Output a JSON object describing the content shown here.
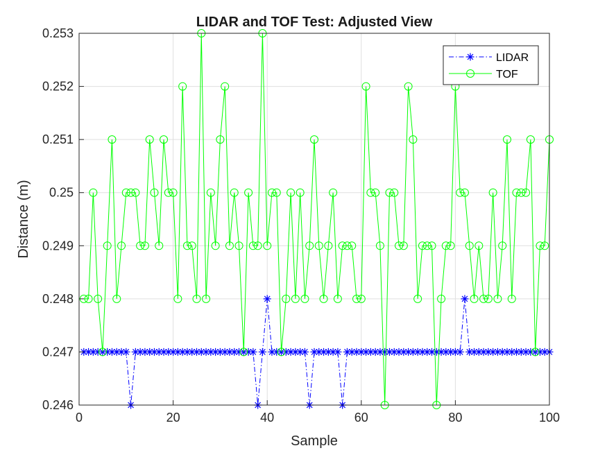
{
  "chart_data": {
    "type": "line",
    "title": "LIDAR and TOF Test: Adjusted View",
    "xlabel": "Sample",
    "ylabel": "Distance (m)",
    "xlim": [
      0,
      100
    ],
    "ylim": [
      0.246,
      0.253
    ],
    "xticks": [
      0,
      20,
      40,
      60,
      80,
      100
    ],
    "xtick_labels": [
      "0",
      "20",
      "40",
      "60",
      "80",
      "100"
    ],
    "yticks": [
      0.246,
      0.247,
      0.248,
      0.249,
      0.25,
      0.251,
      0.252,
      0.253
    ],
    "ytick_labels": [
      "0.246",
      "0.247",
      "0.248",
      "0.249",
      "0.25",
      "0.251",
      "0.252",
      "0.253"
    ],
    "grid": true,
    "legend_position": "top-right",
    "x": [
      1,
      2,
      3,
      4,
      5,
      6,
      7,
      8,
      9,
      10,
      11,
      12,
      13,
      14,
      15,
      16,
      17,
      18,
      19,
      20,
      21,
      22,
      23,
      24,
      25,
      26,
      27,
      28,
      29,
      30,
      31,
      32,
      33,
      34,
      35,
      36,
      37,
      38,
      39,
      40,
      41,
      42,
      43,
      44,
      45,
      46,
      47,
      48,
      49,
      50,
      51,
      52,
      53,
      54,
      55,
      56,
      57,
      58,
      59,
      60,
      61,
      62,
      63,
      64,
      65,
      66,
      67,
      68,
      69,
      70,
      71,
      72,
      73,
      74,
      75,
      76,
      77,
      78,
      79,
      80,
      81,
      82,
      83,
      84,
      85,
      86,
      87,
      88,
      89,
      90,
      91,
      92,
      93,
      94,
      95,
      96,
      97,
      98,
      99,
      100
    ],
    "series": [
      {
        "name": "LIDAR",
        "color": "#0000ff",
        "line_style": "dash-dot",
        "marker": "asterisk",
        "values": [
          0.247,
          0.247,
          0.247,
          0.247,
          0.247,
          0.247,
          0.247,
          0.247,
          0.247,
          0.247,
          0.246,
          0.247,
          0.247,
          0.247,
          0.247,
          0.247,
          0.247,
          0.247,
          0.247,
          0.247,
          0.247,
          0.247,
          0.247,
          0.247,
          0.247,
          0.247,
          0.247,
          0.247,
          0.247,
          0.247,
          0.247,
          0.247,
          0.247,
          0.247,
          0.247,
          0.247,
          0.247,
          0.246,
          0.247,
          0.248,
          0.247,
          0.247,
          0.247,
          0.247,
          0.247,
          0.247,
          0.247,
          0.247,
          0.246,
          0.247,
          0.247,
          0.247,
          0.247,
          0.247,
          0.247,
          0.246,
          0.247,
          0.247,
          0.247,
          0.247,
          0.247,
          0.247,
          0.247,
          0.247,
          0.247,
          0.247,
          0.247,
          0.247,
          0.247,
          0.247,
          0.247,
          0.247,
          0.247,
          0.247,
          0.247,
          0.247,
          0.247,
          0.247,
          0.247,
          0.247,
          0.247,
          0.248,
          0.247,
          0.247,
          0.247,
          0.247,
          0.247,
          0.247,
          0.247,
          0.247,
          0.247,
          0.247,
          0.247,
          0.247,
          0.247,
          0.247,
          0.247,
          0.247,
          0.247,
          0.247
        ]
      },
      {
        "name": "TOF",
        "color": "#00ff00",
        "line_style": "solid",
        "marker": "circle",
        "values": [
          0.248,
          0.248,
          0.25,
          0.248,
          0.247,
          0.249,
          0.251,
          0.248,
          0.249,
          0.25,
          0.25,
          0.25,
          0.249,
          0.249,
          0.251,
          0.25,
          0.249,
          0.251,
          0.25,
          0.25,
          0.248,
          0.252,
          0.249,
          0.249,
          0.248,
          0.253,
          0.248,
          0.25,
          0.249,
          0.251,
          0.252,
          0.249,
          0.25,
          0.249,
          0.247,
          0.25,
          0.249,
          0.249,
          0.253,
          0.249,
          0.25,
          0.25,
          0.247,
          0.248,
          0.25,
          0.248,
          0.25,
          0.248,
          0.249,
          0.251,
          0.249,
          0.248,
          0.249,
          0.25,
          0.248,
          0.249,
          0.249,
          0.249,
          0.248,
          0.248,
          0.252,
          0.25,
          0.25,
          0.249,
          0.246,
          0.25,
          0.25,
          0.249,
          0.249,
          0.252,
          0.251,
          0.248,
          0.249,
          0.249,
          0.249,
          0.246,
          0.248,
          0.249,
          0.249,
          0.252,
          0.25,
          0.25,
          0.249,
          0.248,
          0.249,
          0.248,
          0.248,
          0.25,
          0.248,
          0.249,
          0.251,
          0.248,
          0.25,
          0.25,
          0.25,
          0.251,
          0.247,
          0.249,
          0.249,
          0.251
        ]
      }
    ]
  }
}
